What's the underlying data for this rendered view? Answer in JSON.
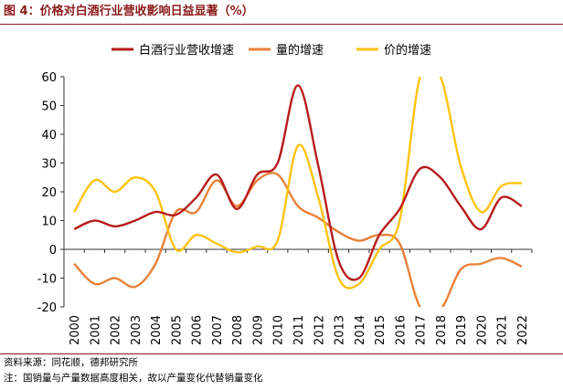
{
  "figure": {
    "title": "图 4：价格对白酒行业营收影响日益显著（%）",
    "source": "资料来源：同花顺，德邦研究所",
    "note": "注：国销量与产量数据高度相关，故以产量变化代替销量变化"
  },
  "colors": {
    "revenue": "#B71C1C",
    "volume": "#E8813A",
    "price": "#FFC20E",
    "title": "#8B1A1A"
  },
  "chart_data": {
    "type": "line",
    "title": "",
    "xlabel": "",
    "ylabel": "",
    "ylim": [
      -20,
      60
    ],
    "yticks": [
      "-20",
      "-10",
      "0",
      "10",
      "20",
      "30",
      "40",
      "50",
      "60"
    ],
    "categories": [
      "2000",
      "2001",
      "2002",
      "2003",
      "2004",
      "2005",
      "2006",
      "2007",
      "2008",
      "2009",
      "2010",
      "2011",
      "2012",
      "2013",
      "2014",
      "2015",
      "2016",
      "2017",
      "2018",
      "2019",
      "2020",
      "2021",
      "2022"
    ],
    "legend_position": "top",
    "series": [
      {
        "name": "白酒行业营收增速",
        "color_key": "revenue",
        "values": [
          7,
          10,
          8,
          10,
          13,
          12,
          18,
          26,
          14,
          26,
          30,
          57,
          29,
          -4,
          -10,
          5,
          14,
          28,
          25,
          15,
          7,
          18,
          15
        ]
      },
      {
        "name": "量的增速",
        "color_key": "volume",
        "values": [
          -5,
          -12,
          -10,
          -13,
          -5,
          13,
          13,
          24,
          15,
          24,
          26,
          15,
          11,
          6,
          3,
          5,
          2,
          -20,
          -21,
          -7,
          -5,
          -3,
          -6
        ]
      },
      {
        "name": "价的增速",
        "color_key": "price",
        "values": [
          13,
          24,
          20,
          25,
          20,
          0,
          5,
          2,
          -1,
          1,
          3,
          36,
          18,
          -10,
          -12,
          0,
          10,
          60,
          60,
          29,
          13,
          22,
          23
        ]
      }
    ]
  }
}
